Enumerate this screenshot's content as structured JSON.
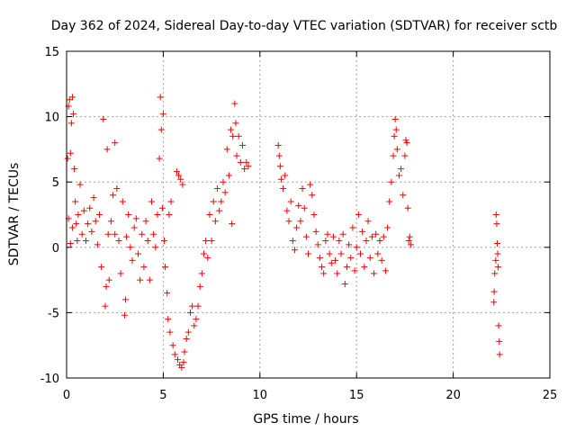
{
  "chart_data": {
    "type": "scatter",
    "title": "Day 362 of 2024, Sidereal Day-to-day VTEC variation (SDTVAR) for receiver sctb",
    "xlabel": "GPS time / hours",
    "ylabel": "SDTVAR / TECUs",
    "xlim": [
      0,
      25
    ],
    "ylim": [
      -10,
      15
    ],
    "xticks": [
      "0",
      "5",
      "10",
      "15",
      "20",
      "25"
    ],
    "yticks": [
      "-10",
      "-5",
      "0",
      "5",
      "10",
      "15"
    ],
    "grid": true,
    "marker": "plus",
    "color": "#ff0000",
    "series": [
      {
        "name": "SDTVAR",
        "points": [
          [
            0.05,
            6.8
          ],
          [
            0.1,
            10.8
          ],
          [
            0.15,
            11.3
          ],
          [
            0.2,
            7.2
          ],
          [
            0.25,
            9.5
          ],
          [
            0.3,
            11.5
          ],
          [
            0.35,
            10.2
          ],
          [
            0.4,
            6.0
          ],
          [
            0.45,
            3.5
          ],
          [
            0.5,
            1.8
          ],
          [
            0.55,
            0.5
          ],
          [
            0.1,
            2.2
          ],
          [
            0.2,
            0.3
          ],
          [
            0.3,
            1.5
          ],
          [
            0.6,
            2.5
          ],
          [
            0.7,
            4.8
          ],
          [
            0.8,
            1.0
          ],
          [
            0.9,
            2.8
          ],
          [
            1.0,
            0.5
          ],
          [
            1.1,
            1.8
          ],
          [
            1.2,
            3.0
          ],
          [
            1.3,
            1.2
          ],
          [
            1.4,
            3.8
          ],
          [
            1.5,
            2.0
          ],
          [
            1.6,
            0.2
          ],
          [
            1.7,
            2.5
          ],
          [
            1.8,
            -1.5
          ],
          [
            1.9,
            9.8
          ],
          [
            2.0,
            -4.5
          ],
          [
            2.05,
            -3.0
          ],
          [
            2.1,
            7.5
          ],
          [
            2.15,
            1.0
          ],
          [
            2.2,
            -2.5
          ],
          [
            2.3,
            2.0
          ],
          [
            2.4,
            4.0
          ],
          [
            2.5,
            1.0
          ],
          [
            2.5,
            8.0
          ],
          [
            2.6,
            4.5
          ],
          [
            2.7,
            0.5
          ],
          [
            2.8,
            -2.0
          ],
          [
            2.9,
            3.5
          ],
          [
            3.0,
            -5.2
          ],
          [
            3.05,
            -4.0
          ],
          [
            3.1,
            0.8
          ],
          [
            3.2,
            2.5
          ],
          [
            3.3,
            0.0
          ],
          [
            3.4,
            -1.0
          ],
          [
            3.5,
            1.5
          ],
          [
            3.6,
            2.2
          ],
          [
            3.7,
            -0.5
          ],
          [
            3.8,
            -2.5
          ],
          [
            3.9,
            1.0
          ],
          [
            4.0,
            -1.5
          ],
          [
            4.1,
            2.0
          ],
          [
            4.2,
            0.5
          ],
          [
            4.3,
            -2.5
          ],
          [
            4.4,
            3.5
          ],
          [
            4.5,
            1.0
          ],
          [
            4.6,
            0.0
          ],
          [
            4.7,
            2.5
          ],
          [
            4.8,
            6.8
          ],
          [
            4.85,
            11.5
          ],
          [
            4.9,
            9.0
          ],
          [
            4.95,
            3.0
          ],
          [
            5.0,
            10.2
          ],
          [
            5.05,
            0.5
          ],
          [
            5.1,
            -1.5
          ],
          [
            5.2,
            -3.5
          ],
          [
            5.25,
            -5.5
          ],
          [
            5.3,
            2.5
          ],
          [
            5.35,
            -6.5
          ],
          [
            5.4,
            3.5
          ],
          [
            5.5,
            -7.5
          ],
          [
            5.6,
            -8.2
          ],
          [
            5.7,
            5.8
          ],
          [
            5.75,
            -8.6
          ],
          [
            5.8,
            5.5
          ],
          [
            5.85,
            -9.0
          ],
          [
            5.9,
            5.2
          ],
          [
            5.95,
            -9.2
          ],
          [
            6.0,
            4.8
          ],
          [
            6.05,
            -8.8
          ],
          [
            6.1,
            -8.0
          ],
          [
            6.2,
            -7.0
          ],
          [
            6.3,
            -6.5
          ],
          [
            6.4,
            -5.0
          ],
          [
            6.5,
            -4.5
          ],
          [
            6.6,
            -6.0
          ],
          [
            6.7,
            -5.5
          ],
          [
            6.8,
            -4.5
          ],
          [
            6.9,
            -3.0
          ],
          [
            7.0,
            -2.0
          ],
          [
            7.1,
            -0.5
          ],
          [
            7.2,
            0.5
          ],
          [
            7.3,
            -0.8
          ],
          [
            7.4,
            2.5
          ],
          [
            7.5,
            0.5
          ],
          [
            7.6,
            3.5
          ],
          [
            7.7,
            2.0
          ],
          [
            7.8,
            4.5
          ],
          [
            7.9,
            2.8
          ],
          [
            8.0,
            3.5
          ],
          [
            8.1,
            5.0
          ],
          [
            8.2,
            4.2
          ],
          [
            8.3,
            7.5
          ],
          [
            8.4,
            5.5
          ],
          [
            8.5,
            9.0
          ],
          [
            8.55,
            1.8
          ],
          [
            8.6,
            8.5
          ],
          [
            8.7,
            11.0
          ],
          [
            8.75,
            9.5
          ],
          [
            8.8,
            7.0
          ],
          [
            8.9,
            8.5
          ],
          [
            9.0,
            6.5
          ],
          [
            9.1,
            7.8
          ],
          [
            9.2,
            6.0
          ],
          [
            9.3,
            6.5
          ],
          [
            9.4,
            6.2
          ],
          [
            10.95,
            7.8
          ],
          [
            11.0,
            7.0
          ],
          [
            11.05,
            6.2
          ],
          [
            11.1,
            5.2
          ],
          [
            11.2,
            4.5
          ],
          [
            11.3,
            5.5
          ],
          [
            11.4,
            2.8
          ],
          [
            11.5,
            2.0
          ],
          [
            11.6,
            3.5
          ],
          [
            11.7,
            0.5
          ],
          [
            11.8,
            -0.2
          ],
          [
            11.9,
            1.5
          ],
          [
            12.0,
            3.2
          ],
          [
            12.1,
            2.0
          ],
          [
            12.2,
            4.5
          ],
          [
            12.3,
            3.0
          ],
          [
            12.4,
            0.8
          ],
          [
            12.5,
            -0.5
          ],
          [
            12.6,
            4.8
          ],
          [
            12.7,
            4.0
          ],
          [
            12.8,
            2.5
          ],
          [
            12.9,
            1.2
          ],
          [
            13.0,
            0.2
          ],
          [
            13.1,
            -0.8
          ],
          [
            13.2,
            -1.5
          ],
          [
            13.3,
            -2.0
          ],
          [
            13.4,
            0.5
          ],
          [
            13.5,
            1.0
          ],
          [
            13.6,
            -0.5
          ],
          [
            13.7,
            -1.2
          ],
          [
            13.8,
            0.8
          ],
          [
            13.9,
            -1.0
          ],
          [
            14.0,
            -2.0
          ],
          [
            14.1,
            0.5
          ],
          [
            14.2,
            -0.5
          ],
          [
            14.3,
            1.0
          ],
          [
            14.4,
            -2.8
          ],
          [
            14.5,
            -1.5
          ],
          [
            14.6,
            0.2
          ],
          [
            14.7,
            -0.8
          ],
          [
            14.8,
            1.5
          ],
          [
            14.9,
            -1.8
          ],
          [
            15.0,
            0.0
          ],
          [
            15.1,
            2.5
          ],
          [
            15.2,
            -0.5
          ],
          [
            15.3,
            1.2
          ],
          [
            15.4,
            -1.5
          ],
          [
            15.5,
            0.5
          ],
          [
            15.6,
            2.0
          ],
          [
            15.7,
            -0.8
          ],
          [
            15.8,
            0.8
          ],
          [
            15.9,
            -2.0
          ],
          [
            16.0,
            1.0
          ],
          [
            16.1,
            -0.5
          ],
          [
            16.2,
            0.5
          ],
          [
            16.3,
            -1.0
          ],
          [
            16.4,
            0.8
          ],
          [
            16.5,
            -1.8
          ],
          [
            16.6,
            1.5
          ],
          [
            16.7,
            3.5
          ],
          [
            16.8,
            5.0
          ],
          [
            16.9,
            7.0
          ],
          [
            16.95,
            8.5
          ],
          [
            17.0,
            9.8
          ],
          [
            17.05,
            9.0
          ],
          [
            17.1,
            7.5
          ],
          [
            17.2,
            5.5
          ],
          [
            17.3,
            6.0
          ],
          [
            17.4,
            4.0
          ],
          [
            17.5,
            7.0
          ],
          [
            17.55,
            8.2
          ],
          [
            17.6,
            8.0
          ],
          [
            17.65,
            3.0
          ],
          [
            17.7,
            0.5
          ],
          [
            17.75,
            0.8
          ],
          [
            17.8,
            0.2
          ],
          [
            22.1,
            -4.2
          ],
          [
            22.12,
            -3.4
          ],
          [
            22.15,
            -2.0
          ],
          [
            22.2,
            -1.0
          ],
          [
            22.22,
            2.5
          ],
          [
            22.25,
            1.8
          ],
          [
            22.28,
            0.3
          ],
          [
            22.3,
            -0.5
          ],
          [
            22.32,
            -1.5
          ],
          [
            22.35,
            -6.0
          ],
          [
            22.38,
            -7.2
          ],
          [
            22.4,
            -8.2
          ]
        ]
      }
    ]
  }
}
